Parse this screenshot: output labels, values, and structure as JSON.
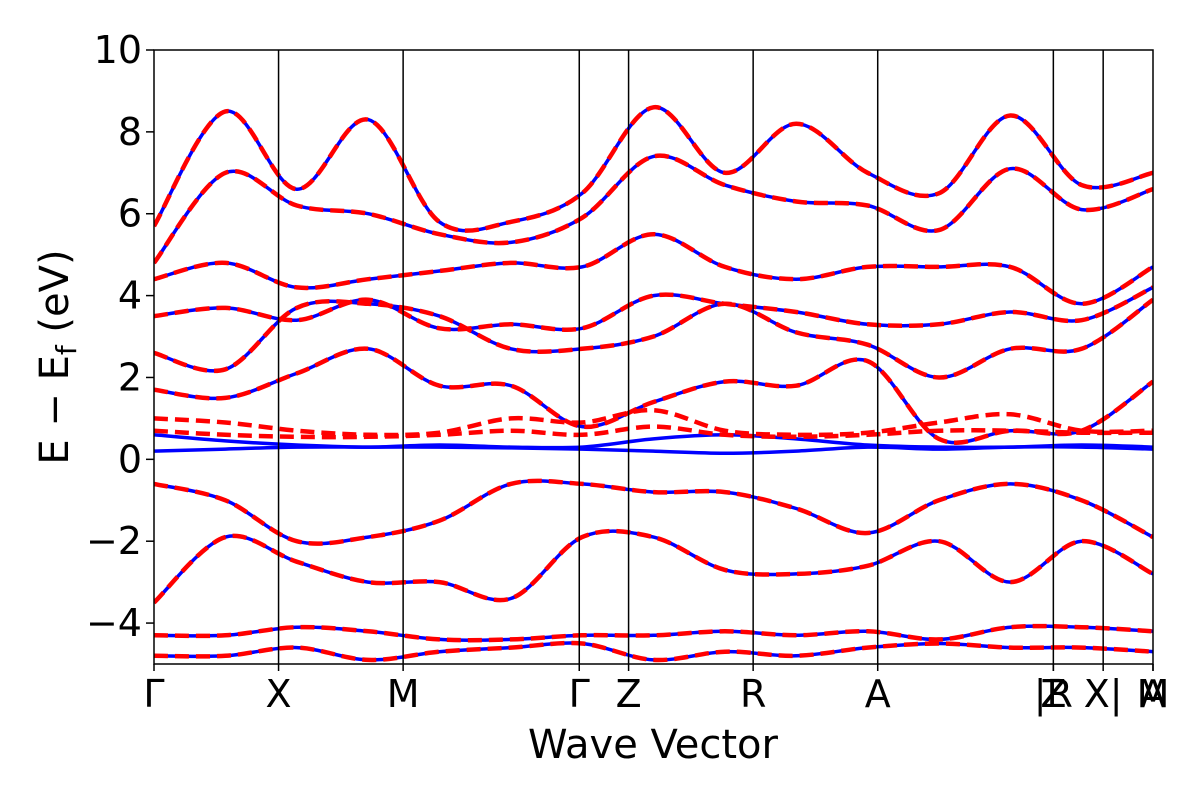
{
  "chart_data": {
    "type": "line",
    "xlabel": "Wave Vector",
    "ylabel_main": "E − E",
    "ylabel_sub": "f",
    "ylabel_unit": " (eV)",
    "ylim": [
      -5,
      10
    ],
    "yticks": [
      {
        "value": 10,
        "label": "10"
      },
      {
        "value": 8,
        "label": "8"
      },
      {
        "value": 6,
        "label": "6"
      },
      {
        "value": 4,
        "label": "4"
      },
      {
        "value": 2,
        "label": "2"
      },
      {
        "value": 0,
        "label": "0"
      },
      {
        "value": -2,
        "label": "−2"
      },
      {
        "value": -4,
        "label": "−4"
      }
    ],
    "kpoints": [
      {
        "label": "Γ",
        "position": 0.0
      },
      {
        "label": "X",
        "position": 1.0
      },
      {
        "label": "M",
        "position": 2.0
      },
      {
        "label": "Γ",
        "position": 3.414
      },
      {
        "label": "Z",
        "position": 3.81
      },
      {
        "label": "R",
        "position": 4.81
      },
      {
        "label": "A",
        "position": 5.81
      },
      {
        "label": "Z",
        "position": 7.22
      },
      {
        "label": "|R",
        "position": 7.22
      },
      {
        "label": "X|",
        "position": 7.62
      },
      {
        "label": "M",
        "position": 8.02
      },
      {
        "label": "A",
        "position": 8.02
      }
    ],
    "xlim": [
      0,
      8.02
    ],
    "grid": false,
    "series": [
      {
        "style": "solid",
        "color": "#0000ff",
        "bands": [
          [
            0.2,
            0.25,
            0.3,
            0.3,
            0.3,
            0.28,
            0.25,
            0.2,
            0.15,
            0.2,
            0.3,
            0.25,
            0.3,
            0.3,
            0.25
          ],
          [
            0.6,
            0.45,
            0.35,
            0.3,
            0.35,
            0.3,
            0.3,
            0.5,
            0.6,
            0.5,
            0.35,
            0.3,
            0.3,
            0.35,
            0.3
          ],
          [
            -0.6,
            -1.0,
            -2.0,
            -1.9,
            -1.5,
            -0.6,
            -0.6,
            -0.8,
            -0.8,
            -1.2,
            -1.8,
            -1.0,
            -0.6,
            -1.0,
            -1.9
          ],
          [
            1.7,
            1.5,
            2.1,
            2.7,
            1.8,
            1.8,
            0.8,
            1.4,
            1.9,
            1.8,
            2.4,
            0.5,
            0.7,
            0.7,
            1.9
          ],
          [
            2.6,
            2.2,
            3.7,
            3.8,
            3.5,
            2.7,
            2.7,
            3.0,
            3.8,
            3.1,
            2.8,
            2.0,
            2.7,
            2.7,
            3.9
          ],
          [
            3.5,
            3.7,
            3.4,
            3.9,
            3.2,
            3.3,
            3.2,
            4.0,
            3.8,
            3.6,
            3.3,
            3.3,
            3.6,
            3.4,
            4.2
          ],
          [
            4.4,
            4.8,
            4.2,
            4.4,
            4.6,
            4.8,
            4.7,
            5.5,
            4.7,
            4.4,
            4.7,
            4.7,
            4.7,
            3.8,
            4.7
          ],
          [
            5.7,
            8.5,
            6.6,
            8.3,
            5.8,
            5.8,
            6.5,
            8.6,
            7.0,
            8.2,
            7.0,
            6.5,
            8.4,
            6.7,
            7.0
          ],
          [
            4.8,
            7.0,
            6.2,
            6.0,
            5.5,
            5.3,
            5.9,
            7.4,
            6.7,
            6.3,
            6.2,
            5.6,
            7.1,
            6.1,
            6.6
          ],
          [
            -3.5,
            -1.9,
            -2.5,
            -3.0,
            -3.0,
            -3.4,
            -1.9,
            -1.9,
            -2.7,
            -2.8,
            -2.6,
            -2.0,
            -3.0,
            -2.0,
            -2.8
          ],
          [
            -4.3,
            -4.3,
            -4.1,
            -4.2,
            -4.4,
            -4.4,
            -4.3,
            -4.3,
            -4.2,
            -4.3,
            -4.2,
            -4.4,
            -4.1,
            -4.1,
            -4.2
          ],
          [
            -4.8,
            -4.8,
            -4.6,
            -4.9,
            -4.7,
            -4.6,
            -4.5,
            -4.9,
            -4.7,
            -4.8,
            -4.6,
            -4.5,
            -4.6,
            -4.6,
            -4.7
          ]
        ]
      },
      {
        "style": "dashed",
        "color": "#ff0000",
        "bands": [
          [
            0.7,
            0.6,
            0.55,
            0.55,
            0.6,
            0.7,
            0.6,
            0.8,
            0.6,
            0.55,
            0.6,
            0.7,
            0.7,
            0.65,
            0.65
          ],
          [
            1.0,
            0.9,
            0.7,
            0.6,
            0.65,
            1.0,
            0.9,
            1.2,
            0.7,
            0.6,
            0.65,
            0.9,
            1.1,
            0.7,
            0.7
          ],
          [
            -0.6,
            -1.0,
            -2.0,
            -1.9,
            -1.5,
            -0.6,
            -0.6,
            -0.8,
            -0.8,
            -1.2,
            -1.8,
            -1.0,
            -0.6,
            -1.0,
            -1.9
          ],
          [
            1.7,
            1.5,
            2.1,
            2.7,
            1.8,
            1.8,
            0.8,
            1.4,
            1.9,
            1.8,
            2.4,
            0.5,
            0.7,
            0.7,
            1.9
          ],
          [
            2.6,
            2.2,
            3.7,
            3.8,
            3.5,
            2.7,
            2.7,
            3.0,
            3.8,
            3.1,
            2.8,
            2.0,
            2.7,
            2.7,
            3.9
          ],
          [
            3.5,
            3.7,
            3.4,
            3.9,
            3.2,
            3.3,
            3.2,
            4.0,
            3.8,
            3.6,
            3.3,
            3.3,
            3.6,
            3.4,
            4.2
          ],
          [
            4.4,
            4.8,
            4.2,
            4.4,
            4.6,
            4.8,
            4.7,
            5.5,
            4.7,
            4.4,
            4.7,
            4.7,
            4.7,
            3.8,
            4.7
          ],
          [
            5.7,
            8.5,
            6.6,
            8.3,
            5.8,
            5.8,
            6.5,
            8.6,
            7.0,
            8.2,
            7.0,
            6.5,
            8.4,
            6.7,
            7.0
          ],
          [
            4.8,
            7.0,
            6.2,
            6.0,
            5.5,
            5.3,
            5.9,
            7.4,
            6.7,
            6.3,
            6.2,
            5.6,
            7.1,
            6.1,
            6.6
          ],
          [
            -3.5,
            -1.9,
            -2.5,
            -3.0,
            -3.0,
            -3.4,
            -1.9,
            -1.9,
            -2.7,
            -2.8,
            -2.6,
            -2.0,
            -3.0,
            -2.0,
            -2.8
          ],
          [
            -4.3,
            -4.3,
            -4.1,
            -4.2,
            -4.4,
            -4.4,
            -4.3,
            -4.3,
            -4.2,
            -4.3,
            -4.2,
            -4.4,
            -4.1,
            -4.1,
            -4.2
          ],
          [
            -4.8,
            -4.8,
            -4.6,
            -4.9,
            -4.7,
            -4.6,
            -4.5,
            -4.9,
            -4.7,
            -4.8,
            -4.6,
            -4.5,
            -4.6,
            -4.6,
            -4.7
          ]
        ]
      }
    ]
  }
}
